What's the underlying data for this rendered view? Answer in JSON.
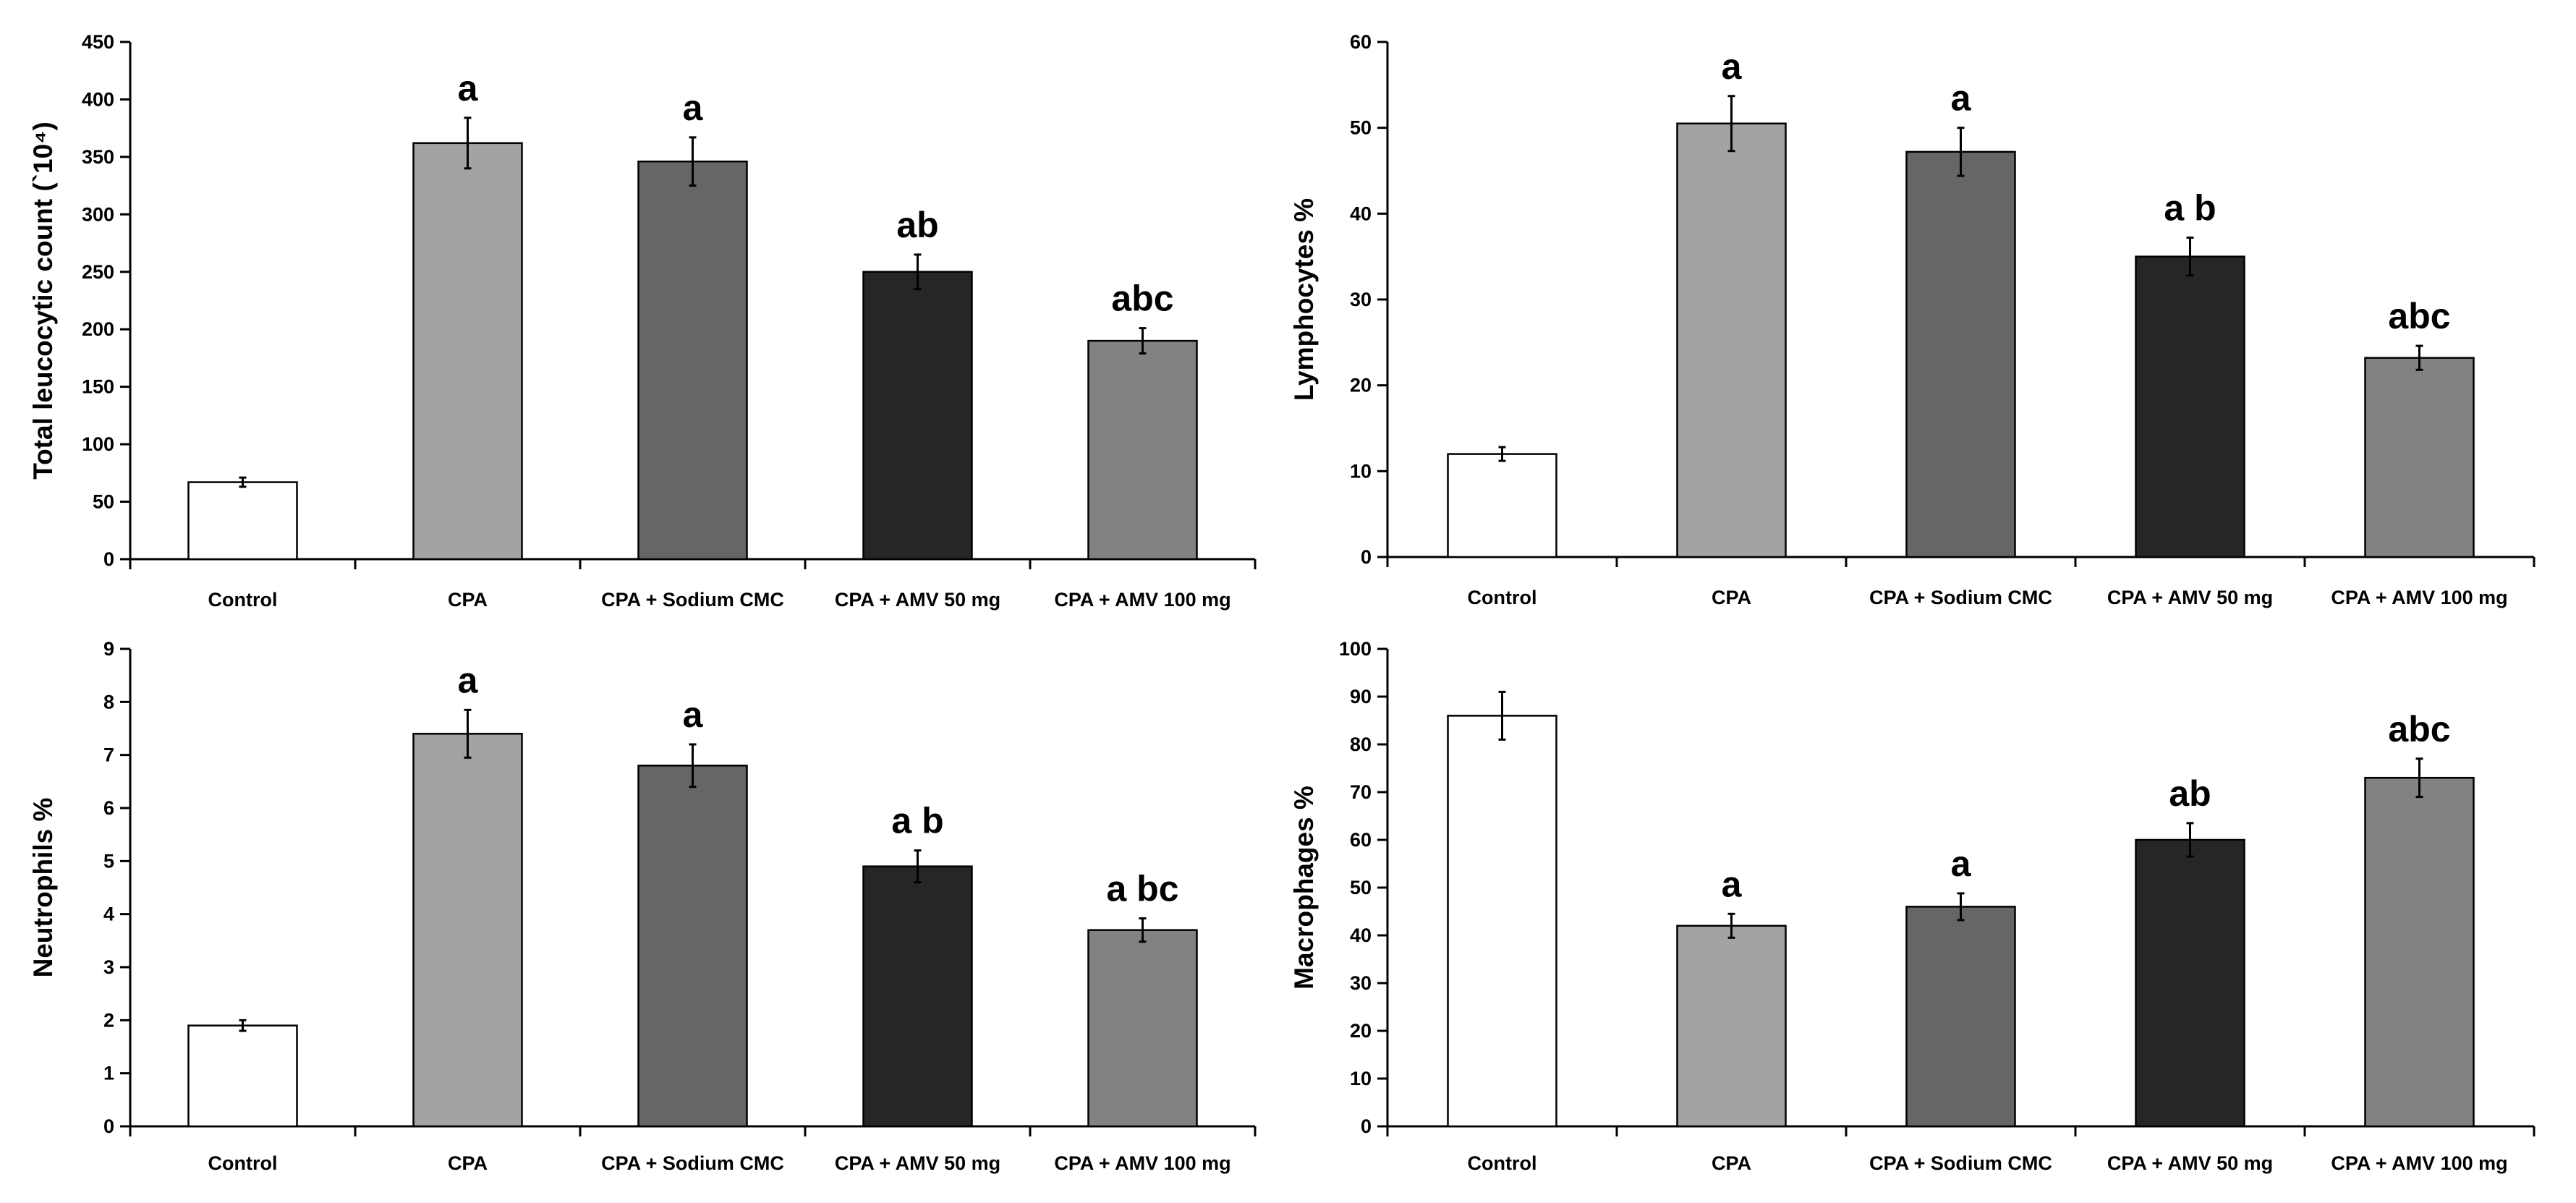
{
  "chart_data": [
    {
      "type": "bar",
      "title": "",
      "xlabel": "",
      "ylabel": "Total leucocytic count (`10⁴)",
      "ylim": [
        0,
        450
      ],
      "yticks": [
        0,
        50,
        100,
        150,
        200,
        250,
        300,
        350,
        400,
        450
      ],
      "categories": [
        "Control",
        "CPA",
        "CPA + Sodium CMC",
        "CPA + AMV 50 mg",
        "CPA + AMV 100 mg"
      ],
      "values": [
        67,
        362,
        346,
        250,
        190
      ],
      "errors": [
        4,
        22,
        21,
        15,
        11
      ],
      "significance": [
        "",
        "a",
        "a",
        "ab",
        "abc"
      ],
      "bar_colors": [
        "#ffffff",
        "#a3a3a3",
        "#666666",
        "#262626",
        "#828282"
      ],
      "grid": false
    },
    {
      "type": "bar",
      "title": "",
      "xlabel": "",
      "ylabel": "Lymphocytes %",
      "ylim": [
        0,
        60
      ],
      "yticks": [
        0,
        10,
        20,
        30,
        40,
        50,
        60
      ],
      "categories": [
        "Control",
        "CPA",
        "CPA + Sodium CMC",
        "CPA + AMV 50 mg",
        "CPA + AMV 100 mg"
      ],
      "values": [
        12,
        50.5,
        47.2,
        35,
        23.2
      ],
      "errors": [
        0.8,
        3.2,
        2.8,
        2.2,
        1.4
      ],
      "significance": [
        "",
        "a",
        "a",
        "a b",
        "abc"
      ],
      "bar_colors": [
        "#ffffff",
        "#a3a3a3",
        "#666666",
        "#262626",
        "#828282"
      ],
      "grid": false
    },
    {
      "type": "bar",
      "title": "",
      "xlabel": "",
      "ylabel": "Neutrophils %",
      "ylim": [
        0,
        9
      ],
      "yticks": [
        0,
        1,
        2,
        3,
        4,
        5,
        6,
        7,
        8,
        9
      ],
      "categories": [
        "Control",
        "CPA",
        "CPA + Sodium CMC",
        "CPA + AMV 50 mg",
        "CPA + AMV 100 mg"
      ],
      "values": [
        1.9,
        7.4,
        6.8,
        4.9,
        3.7
      ],
      "errors": [
        0.1,
        0.45,
        0.4,
        0.3,
        0.22
      ],
      "significance": [
        "",
        "a",
        "a",
        "a b",
        "a bc"
      ],
      "bar_colors": [
        "#ffffff",
        "#a3a3a3",
        "#666666",
        "#262626",
        "#828282"
      ],
      "grid": false
    },
    {
      "type": "bar",
      "title": "",
      "xlabel": "",
      "ylabel": "Macrophages %",
      "ylim": [
        0,
        100
      ],
      "yticks": [
        0,
        10,
        20,
        30,
        40,
        50,
        60,
        70,
        80,
        90,
        100
      ],
      "categories": [
        "Control",
        "CPA",
        "CPA + Sodium CMC",
        "CPA + AMV 50 mg",
        "CPA + AMV 100 mg"
      ],
      "values": [
        86,
        42,
        46,
        60,
        73
      ],
      "errors": [
        5,
        2.5,
        2.8,
        3.5,
        4
      ],
      "significance": [
        "",
        "a",
        "a",
        "ab",
        "abc"
      ],
      "bar_colors": [
        "#ffffff",
        "#a3a3a3",
        "#666666",
        "#262626",
        "#828282"
      ],
      "grid": false
    }
  ]
}
